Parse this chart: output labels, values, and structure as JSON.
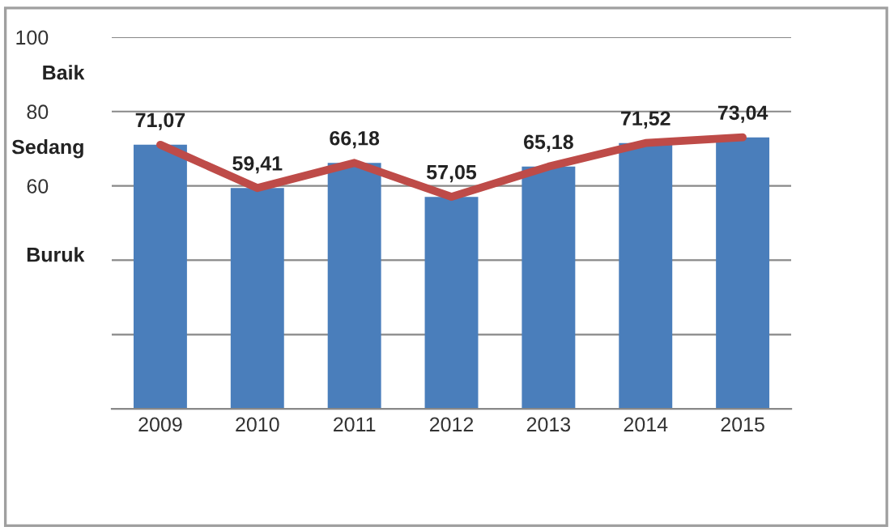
{
  "chart_data": {
    "type": "bar",
    "categories": [
      "2009",
      "2010",
      "2011",
      "2012",
      "2013",
      "2014",
      "2015"
    ],
    "series": [
      {
        "color": "#4a7ebb",
        "values": [
          71.07,
          59.41,
          66.18,
          57.05,
          65.18,
          71.52,
          73.04
        ]
      },
      {
        "type": "line",
        "color": "#be4b48",
        "values": [
          71.07,
          59.41,
          66.18,
          57.05,
          65.18,
          71.52,
          73.04
        ],
        "value_labels": [
          "71,07",
          "59,41",
          "66,18",
          "57,05",
          "65,18",
          "71,52",
          "73,04"
        ]
      }
    ],
    "ylim": [
      0,
      100
    ],
    "yticks": [
      {
        "value": 0,
        "label": null
      },
      {
        "value": 20,
        "label": null
      },
      {
        "value": 40,
        "label": null
      },
      60,
      80,
      100
    ],
    "grid": "y",
    "annotations": [
      "Baik",
      "Sedang",
      "Buruk"
    ]
  }
}
